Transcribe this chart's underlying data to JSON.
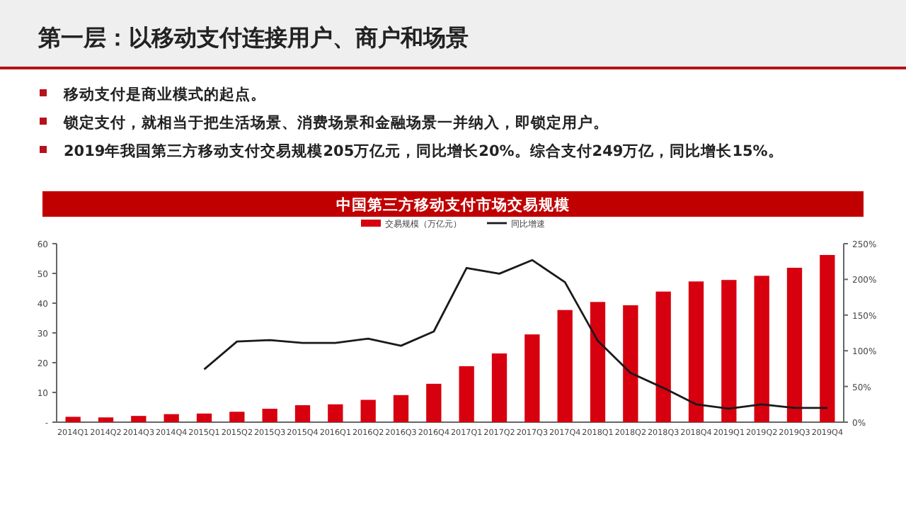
{
  "chart_data": {
    "type": "bar",
    "title": "第一层：以移动支付连接用户、商户和场景",
    "subtitle": "中国第三方移动支付市场交易规模",
    "annotations": [
      "移动支付是商业模式的起点。",
      "锁定支付，就相当于把生活场景、消费场景和金融场景一并纳入，即锁定用户。",
      "2019年我国第三方移动支付交易规模205万亿元，同比增长20%。综合支付249万亿，同比增长15%。"
    ],
    "categories": [
      "2014Q1",
      "2014Q2",
      "2014Q3",
      "2014Q4",
      "2015Q1",
      "2015Q2",
      "2015Q3",
      "2015Q4",
      "2016Q1",
      "2016Q2",
      "2016Q3",
      "2016Q4",
      "2017Q1",
      "2017Q2",
      "2017Q3",
      "2017Q4",
      "2018Q1",
      "2018Q2",
      "2018Q3",
      "2018Q4",
      "2019Q1",
      "2019Q2",
      "2019Q3",
      "2019Q4"
    ],
    "series": [
      {
        "name": "交易规模（万亿元）",
        "color": "#d7000f",
        "values": [
          1.8,
          1.6,
          2.1,
          2.7,
          2.9,
          3.5,
          4.5,
          5.7,
          6.0,
          7.5,
          9.1,
          12.9,
          18.8,
          23.1,
          29.5,
          37.7,
          40.4,
          39.3,
          43.9,
          47.3,
          47.8,
          49.2,
          51.9,
          56.2
        ]
      },
      {
        "name": "同比增速",
        "type": "line",
        "axis": "y2",
        "color": "#1a1a1a",
        "values": [
          null,
          null,
          null,
          null,
          74,
          113,
          115,
          111,
          111,
          117,
          107,
          127,
          216,
          208,
          227,
          196,
          114,
          69,
          48,
          25,
          19,
          25,
          20,
          20
        ]
      }
    ],
    "ylim": [
      0,
      60
    ],
    "yticks": [
      {
        "value": 0,
        "label": "-"
      },
      10,
      20,
      30,
      40,
      50,
      60
    ],
    "y2lim": [
      0,
      250
    ],
    "y2ticks": [
      {
        "value": 0,
        "label": "0%"
      },
      {
        "value": 50,
        "label": "50%"
      },
      {
        "value": 100,
        "label": "100%"
      },
      {
        "value": 150,
        "label": "150%"
      },
      {
        "value": 200,
        "label": "200%"
      },
      {
        "value": 250,
        "label": "250%"
      }
    ],
    "legend": "top",
    "grid": false,
    "marker": "none",
    "line_style": "solid"
  }
}
